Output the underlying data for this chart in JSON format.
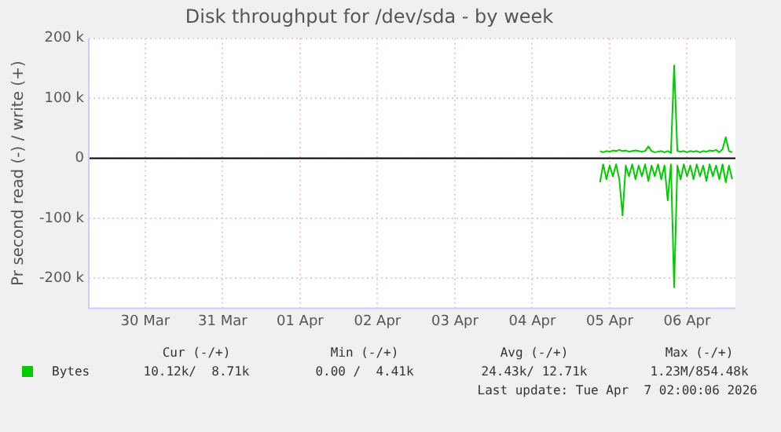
{
  "chart_data": {
    "type": "line",
    "title": "Disk throughput for /dev/sda - by week",
    "ylabel": "Pr second read (-) / write (+)",
    "xlim": [
      "2026-03-29T18:30",
      "2026-04-07T03:00"
    ],
    "xticks": [
      {
        "value": "2026-03-30T12:00",
        "label": "30 Mar"
      },
      {
        "value": "2026-03-31T12:00",
        "label": "31 Mar"
      },
      {
        "value": "2026-04-01T12:00",
        "label": "01 Apr"
      },
      {
        "value": "2026-04-02T12:00",
        "label": "02 Apr"
      },
      {
        "value": "2026-04-03T12:00",
        "label": "03 Apr"
      },
      {
        "value": "2026-04-04T12:00",
        "label": "04 Apr"
      },
      {
        "value": "2026-04-05T12:00",
        "label": "05 Apr"
      },
      {
        "value": "2026-04-06T12:00",
        "label": "06 Apr"
      }
    ],
    "ylim": [
      -250000,
      200000
    ],
    "yticks": [
      {
        "value": -200000,
        "label": "-200 k"
      },
      {
        "value": -100000,
        "label": "-100 k"
      },
      0,
      {
        "value": 100000,
        "label": "100 k"
      },
      {
        "value": 200000,
        "label": "200 k"
      }
    ],
    "grid": true,
    "legend": "bottom left",
    "marker": "none",
    "line_style": "solid",
    "ref_lines": [
      {
        "axis": "y",
        "value": 0,
        "color": "#000000"
      }
    ],
    "x": [
      "2026-04-05T09:00",
      "2026-04-05T10:00",
      "2026-04-05T11:00",
      "2026-04-05T12:00",
      "2026-04-05T13:00",
      "2026-04-05T14:00",
      "2026-04-05T15:00",
      "2026-04-05T16:00",
      "2026-04-05T17:00",
      "2026-04-05T18:00",
      "2026-04-05T19:00",
      "2026-04-05T20:00",
      "2026-04-05T21:00",
      "2026-04-05T22:00",
      "2026-04-05T23:00",
      "2026-04-06T00:00",
      "2026-04-06T01:00",
      "2026-04-06T02:00",
      "2026-04-06T03:00",
      "2026-04-06T04:00",
      "2026-04-06T05:00",
      "2026-04-06T06:00",
      "2026-04-06T07:00",
      "2026-04-06T08:00",
      "2026-04-06T09:00",
      "2026-04-06T10:00",
      "2026-04-06T11:00",
      "2026-04-06T12:00",
      "2026-04-06T13:00",
      "2026-04-06T14:00",
      "2026-04-06T15:00",
      "2026-04-06T16:00",
      "2026-04-06T17:00",
      "2026-04-06T18:00",
      "2026-04-06T19:00",
      "2026-04-06T20:00",
      "2026-04-06T21:00",
      "2026-04-06T22:00",
      "2026-04-06T23:00",
      "2026-04-07T00:00",
      "2026-04-07T01:00",
      "2026-04-07T02:00"
    ],
    "series": [
      {
        "name": "Bytes",
        "color": "#00cc00",
        "values": [
          12000,
          10000,
          12000,
          11000,
          13000,
          12000,
          14000,
          12000,
          13000,
          11000,
          12000,
          13000,
          12000,
          11000,
          12000,
          20000,
          12000,
          10000,
          11000,
          12000,
          10000,
          12000,
          9000,
          155000,
          12000,
          11000,
          12000,
          10000,
          12000,
          11000,
          12000,
          10000,
          12000,
          11000,
          13000,
          12000,
          14000,
          10000,
          15000,
          35000,
          12000,
          10000
        ]
      },
      {
        "color": "#00cc00",
        "values": [
          -40000,
          -10000,
          -35000,
          -12000,
          -30000,
          -10000,
          -35000,
          -95000,
          -12000,
          -30000,
          -10000,
          -35000,
          -12000,
          -30000,
          -10000,
          -38000,
          -12000,
          -30000,
          -10000,
          -35000,
          -12000,
          -70000,
          -10000,
          -215000,
          -12000,
          -35000,
          -10000,
          -30000,
          -12000,
          -35000,
          -10000,
          -30000,
          -12000,
          -38000,
          -10000,
          -30000,
          -12000,
          -35000,
          -10000,
          -40000,
          -12000,
          -35000
        ]
      }
    ],
    "annotations": [
      "Cur (-/+)",
      "Min (-/+)",
      "Avg (-/+)",
      "Max (-/+)",
      "10.12k/  8.71k",
      "0.00 /  4.41k",
      "24.43k/ 12.71k",
      "1.23M/854.48k",
      "Last update: Tue Apr  7 02:00:06 2026"
    ]
  }
}
